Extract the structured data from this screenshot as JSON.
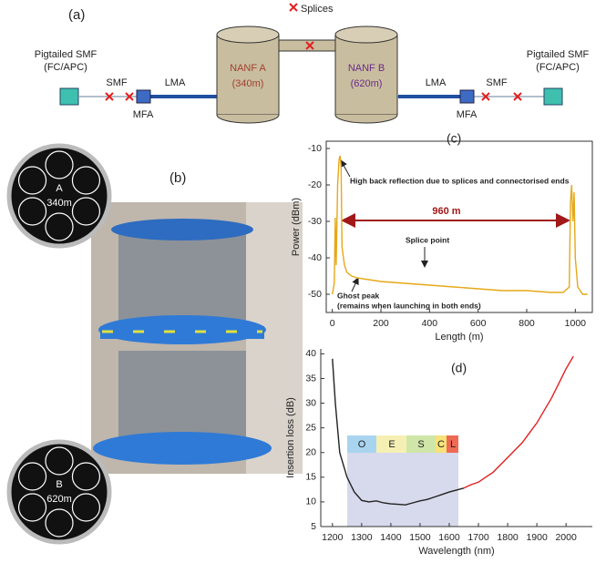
{
  "figure_a": {
    "label": "(a)",
    "splices_legend": "Splices",
    "left_pigtail": [
      "Pigtailed SMF",
      "(FC/APC)"
    ],
    "right_pigtail": [
      "Pigtailed SMF",
      "(FC/APC)"
    ],
    "left_smf": "SMF",
    "right_smf": "SMF",
    "left_lma": "LMA",
    "right_lma": "LMA",
    "left_mfa": "MFA",
    "right_mfa": "MFA",
    "nanf_a": [
      "NANF A",
      "(340m)"
    ],
    "nanf_b": [
      "NANF B",
      "(620m)"
    ]
  },
  "figure_b": {
    "label": "(b)",
    "fiber_a": [
      "A",
      "340m"
    ],
    "fiber_b": [
      "B",
      "620m"
    ]
  },
  "chart_data": [
    {
      "type": "line",
      "panel_label": "(c)",
      "xlabel": "Length (m)",
      "ylabel": "Power (dBm)",
      "annotations": [
        "High back reflection due to splices and connectorised ends",
        "960 m",
        "Splice point",
        "Ghost peak",
        "(remains when launching in both ends)"
      ],
      "x": [
        0,
        8,
        12,
        16,
        22,
        28,
        32,
        36,
        40,
        50,
        60,
        80,
        100,
        150,
        200,
        300,
        400,
        500,
        600,
        700,
        800,
        900,
        950,
        975,
        980,
        985,
        990,
        995,
        1000,
        1010,
        1030,
        1050
      ],
      "series": [
        {
          "color": "#e6a817",
          "values": [
            -50,
            -47,
            -29,
            -42,
            -20,
            -13,
            -12,
            -15,
            -37,
            -42,
            -44,
            -45,
            -45.5,
            -46,
            -46.5,
            -47,
            -47.5,
            -48,
            -48.5,
            -49,
            -49,
            -49.5,
            -49.5,
            -48,
            -25,
            -20,
            -30,
            -22,
            -40,
            -48,
            -50,
            -50
          ]
        }
      ],
      "xlim": [
        -25,
        1070
      ],
      "ylim": [
        -55,
        -8
      ],
      "xticks": [
        0,
        200,
        400,
        600,
        800,
        1000
      ],
      "yticks": [
        -10,
        -20,
        -30,
        -40,
        -50
      ],
      "frame": true
    },
    {
      "type": "line",
      "panel_label": "(d)",
      "xlabel": "Wavelength (nm)",
      "ylabel": "Insertion loss (dB)",
      "bands": [
        "O",
        "E",
        "S",
        "C",
        "L"
      ],
      "x": [
        1200,
        1210,
        1225,
        1250,
        1275,
        1300,
        1325,
        1350,
        1375,
        1400,
        1425,
        1450,
        1475,
        1500,
        1525,
        1550,
        1575,
        1600,
        1625,
        1650,
        1675,
        1700,
        1725,
        1750,
        1775,
        1800,
        1825,
        1850,
        1875,
        1900,
        1925,
        1950,
        1975,
        2000,
        2025
      ],
      "series": [
        {
          "color": "#222222",
          "values": [
            39,
            30,
            20,
            15,
            12,
            10.3,
            10,
            10.2,
            9.8,
            9.6,
            9.5,
            9.4,
            9.8,
            10.2,
            10.5,
            11,
            11.5,
            12,
            12.4,
            12.8,
            null,
            null,
            null,
            null,
            null,
            null,
            null,
            null,
            null,
            null,
            null,
            null,
            null,
            null,
            null
          ]
        },
        {
          "color": "#e02020",
          "values": [
            null,
            null,
            null,
            null,
            null,
            null,
            null,
            null,
            null,
            null,
            null,
            null,
            null,
            null,
            null,
            null,
            null,
            null,
            null,
            12.8,
            13.5,
            14,
            15,
            16,
            17.5,
            19,
            20.5,
            22,
            24,
            26,
            28.5,
            31,
            34,
            37,
            39.5
          ]
        }
      ],
      "xlim": [
        1160,
        2090
      ],
      "ylim": [
        5,
        41
      ],
      "xticks": [
        1200,
        1300,
        1400,
        1500,
        1600,
        1700,
        1800,
        1900,
        2000
      ],
      "yticks": [
        5,
        10,
        15,
        20,
        25,
        30,
        35,
        40
      ],
      "frame": false
    }
  ]
}
